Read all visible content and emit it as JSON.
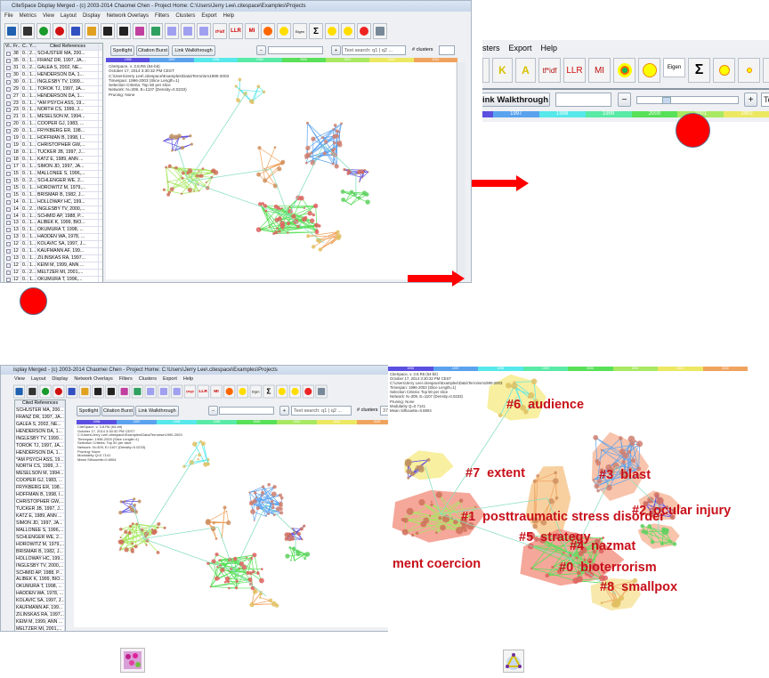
{
  "window": {
    "title": "CiteSpace Display Merged - (c) 2003-2014 Chaomei Chen - Project Home: C:\\Users\\Jerry Lee\\.citespace\\Examples\\Projects",
    "title_cropped": "isplay Merged - (c) 2003-2014 Chaomei Chen - Project Home: C:\\Users\\Jerry Lee\\.citespace\\Examples\\Projects",
    "menu": [
      "File",
      "Metrics",
      "View",
      "Layout",
      "Display",
      "Network Overlays",
      "Filters",
      "Clusters",
      "Export",
      "Help"
    ],
    "menu_cropped": [
      "View",
      "Layout",
      "Display",
      "Network Overlays",
      "Filters",
      "Clusters",
      "Export",
      "Help"
    ],
    "menu_zoomed": [
      "sters",
      "Export",
      "Help"
    ]
  },
  "toolbar": {
    "icons": [
      "save-icon",
      "clapperboard-icon",
      "play-icon",
      "stop-icon",
      "line-icon",
      "color-grid-icon",
      "bold-i-icon",
      "text-i-icon",
      "cluster-purple-icon",
      "cluster-green-icon",
      "triangle-icon",
      "triangle-k-icon",
      "triangle-a-icon",
      "tfidf-icon",
      "llr-icon",
      "mi-icon",
      "target-icon",
      "yellow-blob-icon",
      "eigen-icon",
      "sigma-icon",
      "yellow-nodes-icon",
      "yellow-chain-icon",
      "red-green-nodes-icon",
      "link-icon"
    ],
    "tfidf": "tf*idf",
    "llr": "LLR",
    "mi": "MI",
    "eigen": "Eigen",
    "sigma": "Σ",
    "k": "K",
    "a": "A"
  },
  "table": {
    "headers": [
      "Vi...",
      "Fr...",
      "C...",
      "Y...",
      "Cited References"
    ],
    "rows": [
      {
        "freq": "38",
        "c": "0...",
        "y": "2...",
        "ref": "SCHUSTER MA, 200..."
      },
      {
        "freq": "35",
        "c": "0...",
        "y": "1...",
        "ref": "FRANZ DR, 1997, JA..."
      },
      {
        "freq": "31",
        "c": "0...",
        "y": "2...",
        "ref": "GALEA S, 2002, NE..."
      },
      {
        "freq": "30",
        "c": "0...",
        "y": "1...",
        "ref": "HENDERSON DA, 1..."
      },
      {
        "freq": "30",
        "c": "0...",
        "y": "1...",
        "ref": "INGLESBY TV, 1999..."
      },
      {
        "freq": "29",
        "c": "0...",
        "y": "1...",
        "ref": "TOROK TJ, 1997, JA..."
      },
      {
        "freq": "27",
        "c": "0...",
        "y": "1...",
        "ref": "HENDERSON DA, 1..."
      },
      {
        "freq": "23",
        "c": "0...",
        "y": "1...",
        "ref": "*AM PSYCH ASS, 19..."
      },
      {
        "freq": "23",
        "c": "0...",
        "y": "1...",
        "ref": "NORTH CS, 1999, J..."
      },
      {
        "freq": "21",
        "c": "0...",
        "y": "1...",
        "ref": "MESELSON M, 1994..."
      },
      {
        "freq": "20",
        "c": "0...",
        "y": "1...",
        "ref": "COOPER GJ, 1983, ..."
      },
      {
        "freq": "20",
        "c": "0...",
        "y": "1...",
        "ref": "FRYKBERG ER, 198..."
      },
      {
        "freq": "19",
        "c": "0...",
        "y": "1...",
        "ref": "HOFFMAN B, 1998, I..."
      },
      {
        "freq": "19",
        "c": "0...",
        "y": "1...",
        "ref": "CHRISTOPHER GW,..."
      },
      {
        "freq": "18",
        "c": "0...",
        "y": "1...",
        "ref": "TUCKER JB, 1997, J..."
      },
      {
        "freq": "18",
        "c": "0...",
        "y": "1...",
        "ref": "KATZ E, 1989, ANN ..."
      },
      {
        "freq": "17",
        "c": "0...",
        "y": "1...",
        "ref": "SIMON JD, 1997, JA..."
      },
      {
        "freq": "15",
        "c": "0...",
        "y": "1...",
        "ref": "MALLONEE S, 1996,..."
      },
      {
        "freq": "15",
        "c": "0...",
        "y": "2...",
        "ref": "SCHLENGER WE, 2..."
      },
      {
        "freq": "15",
        "c": "0...",
        "y": "1...",
        "ref": "HOROWITZ M, 1979,..."
      },
      {
        "freq": "15",
        "c": "0...",
        "y": "1...",
        "ref": "BRISMAR B, 1982, J..."
      },
      {
        "freq": "14",
        "c": "0...",
        "y": "1...",
        "ref": "HOLLOWAY HC, 199..."
      },
      {
        "freq": "14",
        "c": "0...",
        "y": "2...",
        "ref": "INGLESBY TV, 2000,..."
      },
      {
        "freq": "14",
        "c": "0...",
        "y": "1...",
        "ref": "SCHMID AP, 1988, P..."
      },
      {
        "freq": "13",
        "c": "0...",
        "y": "1...",
        "ref": "ALIBEK K, 1999, BIO..."
      },
      {
        "freq": "13",
        "c": "0...",
        "y": "1...",
        "ref": "OKUMURA T, 1998, ..."
      },
      {
        "freq": "13",
        "c": "0...",
        "y": "1...",
        "ref": "HADDEN WA, 1978, ..."
      },
      {
        "freq": "12",
        "c": "0...",
        "y": "1...",
        "ref": "KOLAVIC SA, 1997, J..."
      },
      {
        "freq": "12",
        "c": "0...",
        "y": "1...",
        "ref": "KAUFMANN AF, 199..."
      },
      {
        "freq": "13",
        "c": "0...",
        "y": "1...",
        "ref": "ZILINSKAS RA, 1997..."
      },
      {
        "freq": "12",
        "c": "0...",
        "y": "1...",
        "ref": "KEIM M, 1999, ANN ..."
      },
      {
        "freq": "12",
        "c": "0...",
        "y": "2...",
        "ref": "MELTZER MI, 2001,..."
      },
      {
        "freq": "12",
        "c": "0...",
        "y": "1...",
        "ref": "OKUMURA T, 1996,..."
      },
      {
        "freq": "12",
        "c": "0...",
        "y": "2...",
        "ref": "MACINTYRE AG, 200..."
      }
    ]
  },
  "controls": {
    "spotlight": "Spotlight",
    "citation_burst": "Citation Burst",
    "link_walkthrough": "Link Walkthrough",
    "link_walkthrough_cropped": "ink Walkthrough",
    "search_placeholder": "Text search: q1 | q2 ...",
    "search_cropped": "Te",
    "clusters_label": "# clusters",
    "clusters_value": "37"
  },
  "timeline": {
    "years": [
      "1996",
      "1997",
      "1998",
      "1999",
      "2000",
      "2001",
      "2002",
      "2003"
    ],
    "colors": [
      "#5b4fe0",
      "#5aa2ee",
      "#56e8ea",
      "#58eaa6",
      "#58e058",
      "#a8e862",
      "#ece862",
      "#f0a35e"
    ]
  },
  "info": {
    "lines_short": [
      "CiteSpace, v. 3.8.R6 (64-bit)",
      "October 17, 2014 3:30:32 PM CEST",
      "C:\\Users\\Jerry Lee\\.citespace\\Examples\\Data\\Terrorism1990-2003",
      "Timespan: 1996-2003 (Slice Length=1)",
      "Selection Criteria: Top 50 per slice",
      "Network: N=309, E=1107 (Density=0.0233)",
      "Pruning: None"
    ],
    "lines_full": [
      "CiteSpace, v. 3.8.R6 (64-bit)",
      "October 17, 2014 3:30:32 PM CEST",
      "C:\\Users\\Jerry Lee\\.citespace\\Examples\\Data\\Terrorism1990-2003",
      "Timespan: 1996-2003 (Slice Length=1)",
      "Selection Criteria: Top 50 per slice",
      "Network: N=309, E=1107 (Density=0.0233)",
      "Pruning: None",
      "Modularity Q=0.7141",
      "Mean Silhouette=0.6904"
    ]
  },
  "clusters": [
    {
      "label": "#6  audience"
    },
    {
      "label": "#7  extent"
    },
    {
      "label": "#3  blast"
    },
    {
      "label": "#2  ocular injury"
    },
    {
      "label": "#1  posttraumatic stress disorder"
    },
    {
      "label": "#5  strategy"
    },
    {
      "label": "#4  nazmat"
    },
    {
      "label": "ment coercion"
    },
    {
      "label": "#0  bioterrorism"
    },
    {
      "label": "#8  smallpox"
    }
  ],
  "colors": {
    "annotation_red": "#ff0000",
    "cluster_label": "#c8101a"
  }
}
